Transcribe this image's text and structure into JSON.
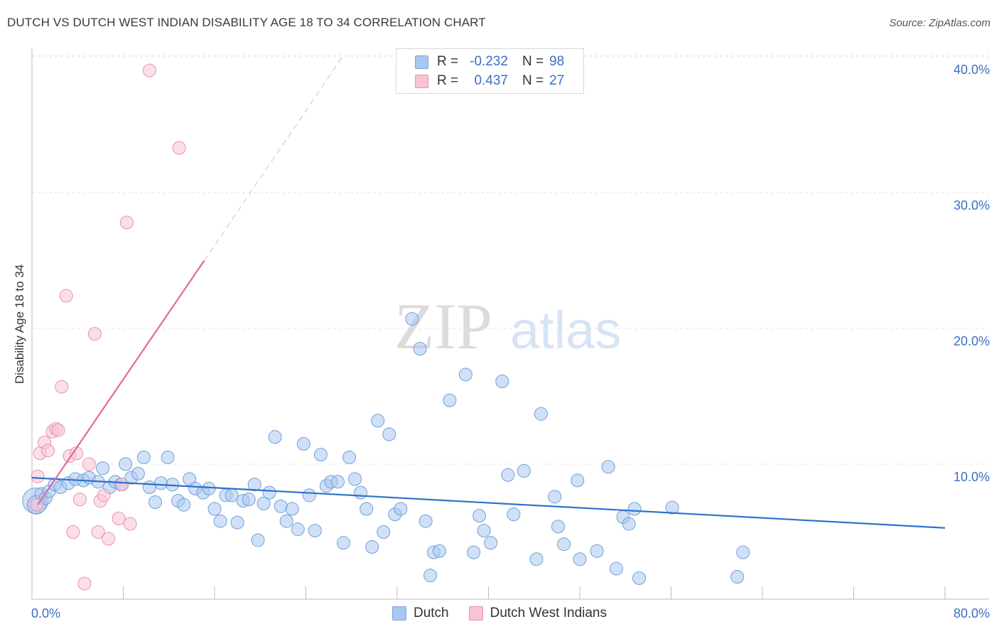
{
  "header": {
    "title": "DUTCH VS DUTCH WEST INDIAN DISABILITY AGE 18 TO 34 CORRELATION CHART",
    "source": "Source: ZipAtlas.com"
  },
  "watermark": {
    "part1": "ZIP",
    "part2": "atlas"
  },
  "legend": {
    "rows": [
      {
        "r_label": "R =",
        "r_value": "-0.232",
        "n_label": "N =",
        "n_value": "98",
        "color": "#a9c8f0",
        "border": "#7aa5dc"
      },
      {
        "r_label": "R =",
        "r_value": "0.437",
        "n_label": "N =",
        "n_value": "27",
        "color": "#f8c4d4",
        "border": "#e891ad"
      }
    ]
  },
  "bottom_legend": [
    {
      "label": "Dutch",
      "color": "#a9c8f0",
      "border": "#7aa5dc"
    },
    {
      "label": "Dutch West Indians",
      "color": "#f8c4d4",
      "border": "#e891ad"
    }
  ],
  "chart_data": {
    "type": "scatter",
    "title": "DUTCH VS DUTCH WEST INDIAN DISABILITY AGE 18 TO 34 CORRELATION CHART",
    "xlabel": "",
    "ylabel": "Disability Age 18 to 34",
    "xlim": [
      0,
      80
    ],
    "ylim": [
      0,
      42
    ],
    "x_tick_labels": [
      {
        "x": 0,
        "label": "0.0%"
      },
      {
        "x": 80,
        "label": "80.0%"
      }
    ],
    "x_minor_ticks": [
      8,
      16,
      24,
      32,
      40,
      48,
      56,
      64,
      72,
      80
    ],
    "y_ticks": [
      {
        "y": 10,
        "label": "10.0%"
      },
      {
        "y": 20,
        "label": "20.0%"
      },
      {
        "y": 30,
        "label": "30.0%"
      },
      {
        "y": 40,
        "label": "40.0%"
      }
    ],
    "grid": true,
    "colors": {
      "dutch": "#a9c8f0",
      "dutch_stroke": "#6f9fd8",
      "dutch_line": "#2f72c8",
      "dwi": "#f8c4d4",
      "dwi_stroke": "#e891ad",
      "dwi_line": "#e06a98"
    },
    "series": [
      {
        "name": "Dutch",
        "points": [
          [
            0.3,
            7.3
          ],
          [
            0.4,
            7.0
          ],
          [
            0.8,
            7.8
          ],
          [
            1.2,
            7.5
          ],
          [
            1.5,
            8.0
          ],
          [
            2.0,
            8.5
          ],
          [
            2.5,
            8.3
          ],
          [
            3.2,
            8.6
          ],
          [
            3.8,
            8.9
          ],
          [
            4.5,
            8.8
          ],
          [
            5.0,
            9.0
          ],
          [
            5.8,
            8.7
          ],
          [
            6.2,
            9.7
          ],
          [
            6.8,
            8.3
          ],
          [
            7.3,
            8.7
          ],
          [
            7.8,
            8.5
          ],
          [
            8.2,
            10.0
          ],
          [
            8.7,
            9.0
          ],
          [
            9.3,
            9.3
          ],
          [
            9.8,
            10.5
          ],
          [
            10.3,
            8.3
          ],
          [
            10.8,
            7.2
          ],
          [
            11.3,
            8.6
          ],
          [
            11.9,
            10.5
          ],
          [
            12.3,
            8.5
          ],
          [
            12.8,
            7.3
          ],
          [
            13.3,
            7.0
          ],
          [
            13.8,
            8.9
          ],
          [
            14.3,
            8.2
          ],
          [
            15.0,
            7.9
          ],
          [
            15.5,
            8.2
          ],
          [
            16.0,
            6.7
          ],
          [
            16.5,
            5.8
          ],
          [
            17.0,
            7.7
          ],
          [
            17.5,
            7.7
          ],
          [
            18.0,
            5.7
          ],
          [
            18.5,
            7.3
          ],
          [
            19.0,
            7.4
          ],
          [
            19.5,
            8.5
          ],
          [
            19.8,
            4.4
          ],
          [
            20.3,
            7.1
          ],
          [
            20.8,
            7.9
          ],
          [
            21.3,
            12.0
          ],
          [
            21.8,
            6.9
          ],
          [
            22.3,
            5.8
          ],
          [
            22.8,
            6.7
          ],
          [
            23.3,
            5.2
          ],
          [
            23.8,
            11.5
          ],
          [
            24.3,
            7.7
          ],
          [
            24.8,
            5.1
          ],
          [
            25.3,
            10.7
          ],
          [
            25.8,
            8.4
          ],
          [
            26.2,
            8.7
          ],
          [
            26.8,
            8.7
          ],
          [
            27.3,
            4.2
          ],
          [
            27.8,
            10.5
          ],
          [
            28.3,
            8.9
          ],
          [
            28.8,
            7.9
          ],
          [
            29.3,
            6.7
          ],
          [
            29.8,
            3.9
          ],
          [
            30.3,
            13.2
          ],
          [
            30.8,
            5.0
          ],
          [
            31.3,
            12.2
          ],
          [
            31.8,
            6.3
          ],
          [
            32.3,
            6.7
          ],
          [
            33.3,
            20.7
          ],
          [
            34.0,
            18.5
          ],
          [
            34.5,
            5.8
          ],
          [
            34.9,
            1.8
          ],
          [
            35.2,
            3.5
          ],
          [
            35.7,
            3.6
          ],
          [
            36.6,
            14.7
          ],
          [
            38.0,
            16.6
          ],
          [
            38.7,
            3.5
          ],
          [
            39.2,
            6.2
          ],
          [
            39.6,
            5.1
          ],
          [
            40.2,
            4.2
          ],
          [
            41.2,
            16.1
          ],
          [
            41.7,
            9.2
          ],
          [
            42.2,
            6.3
          ],
          [
            43.1,
            9.5
          ],
          [
            44.2,
            3.0
          ],
          [
            44.6,
            13.7
          ],
          [
            45.8,
            7.6
          ],
          [
            46.1,
            5.4
          ],
          [
            46.6,
            4.1
          ],
          [
            47.8,
            8.8
          ],
          [
            48.0,
            3.0
          ],
          [
            49.5,
            3.6
          ],
          [
            50.5,
            9.8
          ],
          [
            51.2,
            2.3
          ],
          [
            51.8,
            6.1
          ],
          [
            52.3,
            5.6
          ],
          [
            52.8,
            6.7
          ],
          [
            53.2,
            1.6
          ],
          [
            56.1,
            6.8
          ],
          [
            61.8,
            1.7
          ],
          [
            62.3,
            3.5
          ]
        ],
        "trend": {
          "x": [
            0,
            80
          ],
          "y": [
            9.0,
            5.3
          ]
        }
      },
      {
        "name": "Dutch West Indians",
        "points": [
          [
            0.4,
            7.0
          ],
          [
            0.5,
            9.1
          ],
          [
            0.7,
            10.8
          ],
          [
            1.1,
            11.6
          ],
          [
            1.4,
            11.0
          ],
          [
            1.8,
            12.4
          ],
          [
            2.1,
            12.6
          ],
          [
            2.3,
            12.5
          ],
          [
            2.6,
            15.7
          ],
          [
            3.0,
            22.4
          ],
          [
            3.3,
            10.6
          ],
          [
            3.6,
            5.0
          ],
          [
            3.9,
            10.8
          ],
          [
            4.2,
            7.4
          ],
          [
            4.6,
            1.2
          ],
          [
            5.0,
            10.0
          ],
          [
            5.5,
            19.6
          ],
          [
            5.8,
            5.0
          ],
          [
            6.0,
            7.3
          ],
          [
            6.3,
            7.7
          ],
          [
            6.7,
            4.5
          ],
          [
            7.6,
            6.0
          ],
          [
            7.9,
            8.5
          ],
          [
            8.3,
            27.8
          ],
          [
            8.6,
            5.6
          ],
          [
            10.3,
            39.0
          ],
          [
            12.9,
            33.3
          ]
        ],
        "trend": {
          "x": [
            0.5,
            15.1
          ],
          "y": [
            7.0,
            25.0
          ]
        },
        "trend_extension": {
          "x": [
            15.1,
            27.2
          ],
          "y": [
            25.0,
            40.0
          ]
        }
      }
    ]
  }
}
